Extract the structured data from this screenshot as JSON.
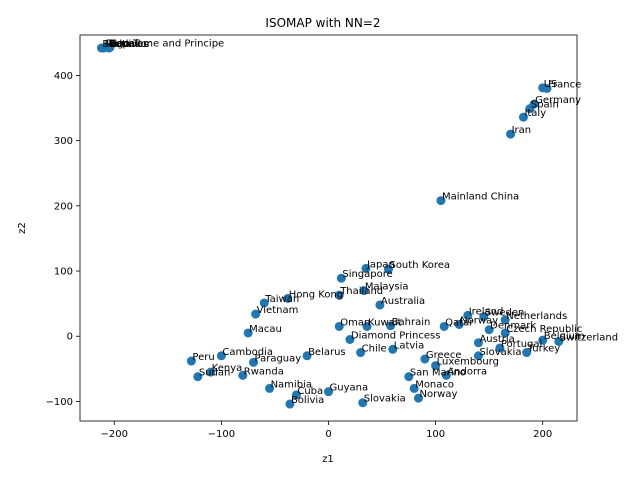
{
  "chart_data": {
    "type": "scatter",
    "title": "ISOMAP with NN=2",
    "xlabel": "z1",
    "ylabel": "z2",
    "xlim": [
      -232,
      232
    ],
    "ylim": [
      -130,
      462
    ],
    "xticks": [
      -200,
      -100,
      0,
      100,
      200
    ],
    "yticks": [
      -100,
      0,
      100,
      200,
      300,
      400
    ],
    "grid": false,
    "marker_color": "#1f77b4",
    "points": [
      {
        "x": -212,
        "y": 442,
        "label": "Bhutan"
      },
      {
        "x": -210,
        "y": 442,
        "label": "Maldives"
      },
      {
        "x": -208,
        "y": 443,
        "label": "Togo"
      },
      {
        "x": -206,
        "y": 443,
        "label": "Nepal"
      },
      {
        "x": -205,
        "y": 442,
        "label": "Ecuador"
      },
      {
        "x": -204,
        "y": 443,
        "label": "Sao Tome and Principe"
      },
      {
        "x": 200,
        "y": 381,
        "label": "US"
      },
      {
        "x": 204,
        "y": 380,
        "label": "France"
      },
      {
        "x": 192,
        "y": 356,
        "label": "Germany"
      },
      {
        "x": 188,
        "y": 349,
        "label": "Spain"
      },
      {
        "x": 182,
        "y": 336,
        "label": "Italy"
      },
      {
        "x": 170,
        "y": 310,
        "label": "Iran"
      },
      {
        "x": 105,
        "y": 208,
        "label": "Mainland China"
      },
      {
        "x": 35,
        "y": 104,
        "label": "Japan"
      },
      {
        "x": 56,
        "y": 103,
        "label": "South Korea"
      },
      {
        "x": 12,
        "y": 89,
        "label": "Singapore"
      },
      {
        "x": 33,
        "y": 70,
        "label": "Malaysia"
      },
      {
        "x": 10,
        "y": 63,
        "label": "Thailand"
      },
      {
        "x": -38,
        "y": 58,
        "label": "Hong Kong"
      },
      {
        "x": 48,
        "y": 48,
        "label": "Australia"
      },
      {
        "x": -60,
        "y": 51,
        "label": "Taiwan"
      },
      {
        "x": -68,
        "y": 34,
        "label": "Vietnam"
      },
      {
        "x": 130,
        "y": 32,
        "label": "Ireland"
      },
      {
        "x": 145,
        "y": 30,
        "label": "Sweden"
      },
      {
        "x": 165,
        "y": 25,
        "label": "Netherlands"
      },
      {
        "x": 122,
        "y": 18,
        "label": "Norway"
      },
      {
        "x": 10,
        "y": 15,
        "label": "Oman"
      },
      {
        "x": 58,
        "y": 16,
        "label": "Bahrain"
      },
      {
        "x": 36,
        "y": 15,
        "label": "Kuwait"
      },
      {
        "x": 108,
        "y": 15,
        "label": "Qatar"
      },
      {
        "x": 150,
        "y": 10,
        "label": "Denmark"
      },
      {
        "x": -75,
        "y": 5,
        "label": "Macau"
      },
      {
        "x": 165,
        "y": 5,
        "label": "Czech Republic"
      },
      {
        "x": 200,
        "y": -6,
        "label": "Belgium"
      },
      {
        "x": 215,
        "y": -8,
        "label": "Switzerland"
      },
      {
        "x": 20,
        "y": -5,
        "label": "Diamond Princess"
      },
      {
        "x": 140,
        "y": -10,
        "label": "Austria"
      },
      {
        "x": 160,
        "y": -18,
        "label": "Portugal"
      },
      {
        "x": 185,
        "y": -25,
        "label": "Turkey"
      },
      {
        "x": 140,
        "y": -30,
        "label": "Slovakia"
      },
      {
        "x": 90,
        "y": -35,
        "label": "Greece"
      },
      {
        "x": 100,
        "y": -45,
        "label": "Luxembourg"
      },
      {
        "x": 75,
        "y": -62,
        "label": "San Marino"
      },
      {
        "x": 80,
        "y": -80,
        "label": "Monaco"
      },
      {
        "x": 84,
        "y": -95,
        "label": "Norway"
      },
      {
        "x": 32,
        "y": -102,
        "label": "Slovakia"
      },
      {
        "x": -36,
        "y": -104,
        "label": "Bolivia"
      },
      {
        "x": -128,
        "y": -38,
        "label": "Peru"
      },
      {
        "x": -122,
        "y": -62,
        "label": "Sudan"
      },
      {
        "x": -110,
        "y": -55,
        "label": "Kenya"
      },
      {
        "x": -80,
        "y": -60,
        "label": "Rwanda"
      },
      {
        "x": -55,
        "y": -80,
        "label": "Namibia"
      },
      {
        "x": -30,
        "y": -90,
        "label": "Cuba"
      },
      {
        "x": 0,
        "y": -85,
        "label": "Guyana"
      },
      {
        "x": -20,
        "y": -30,
        "label": "Belarus"
      },
      {
        "x": 30,
        "y": -25,
        "label": "Chile"
      },
      {
        "x": 60,
        "y": -20,
        "label": "Latvia"
      },
      {
        "x": -100,
        "y": -30,
        "label": "Cambodia"
      },
      {
        "x": -70,
        "y": -40,
        "label": "Paraguay"
      },
      {
        "x": 110,
        "y": -60,
        "label": "Andorra"
      }
    ]
  }
}
